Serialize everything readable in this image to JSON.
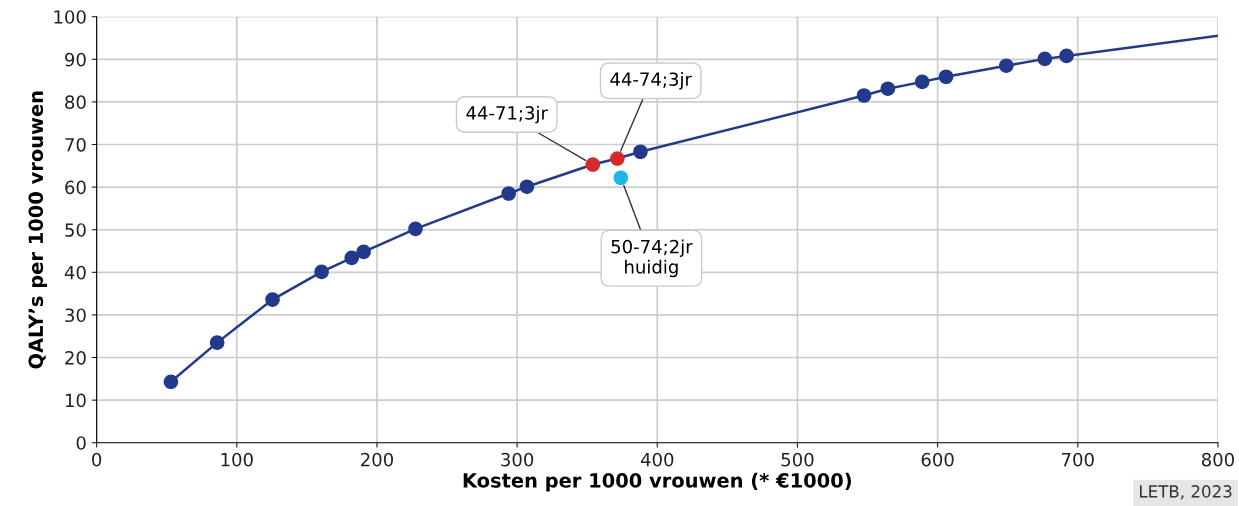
{
  "chart_data": {
    "type": "scatter",
    "xlabel": "Kosten per 1000 vrouwen (* €1000)",
    "ylabel": "QALY’s per 1000 vrouwen",
    "xlim": [
      0,
      800
    ],
    "xticks": [
      0,
      100,
      200,
      300,
      400,
      500,
      600,
      700,
      800
    ],
    "ylim": [
      0,
      100
    ],
    "yticks": [
      0,
      10,
      20,
      30,
      40,
      50,
      60,
      70,
      80,
      90,
      100
    ],
    "grid": true,
    "series": [
      {
        "type": "line",
        "marker": "none",
        "line_style": "solid",
        "color": "#233a8b",
        "x": [
          53,
          86,
          125.5,
          160.5,
          182,
          190.5,
          227.5,
          294,
          307,
          354,
          371.5,
          388,
          547.5,
          564.5,
          589,
          606,
          649,
          676.5,
          692,
          800
        ],
        "values": [
          14.3,
          23.5,
          33.6,
          40.1,
          43.4,
          44.8,
          50.2,
          58.5,
          60.1,
          65.3,
          66.7,
          68.3,
          81.5,
          83.1,
          84.7,
          85.9,
          88.5,
          90.1,
          90.8,
          95.5
        ]
      },
      {
        "marker": "circle",
        "color": "#233a8b",
        "x": [
          53,
          86,
          125.5,
          160.5,
          182,
          190.5,
          227.5,
          294,
          307,
          388,
          547.5,
          564.5,
          589,
          606,
          649,
          676.5,
          692
        ],
        "values": [
          14.3,
          23.5,
          33.6,
          40.1,
          43.4,
          44.8,
          50.2,
          58.5,
          60.1,
          68.3,
          81.5,
          83.1,
          84.7,
          85.9,
          88.5,
          90.1,
          90.8
        ]
      },
      {
        "marker": "circle",
        "color": "#d62a2a",
        "x": [
          354,
          371.5
        ],
        "values": [
          65.3,
          66.7
        ]
      },
      {
        "marker": "circle",
        "color": "#1cb5ec",
        "x": [
          374
        ],
        "values": [
          62.2
        ]
      }
    ],
    "annotations": [
      {
        "text": "44-71;3jr",
        "x": 354,
        "y": 65.3
      },
      {
        "text": "44-74;3jr",
        "x": 371.5,
        "y": 66.7
      },
      {
        "text": "50-74;2jr\nhuidig",
        "x": 374,
        "y": 62.2
      },
      "LETB, 2023"
    ]
  }
}
